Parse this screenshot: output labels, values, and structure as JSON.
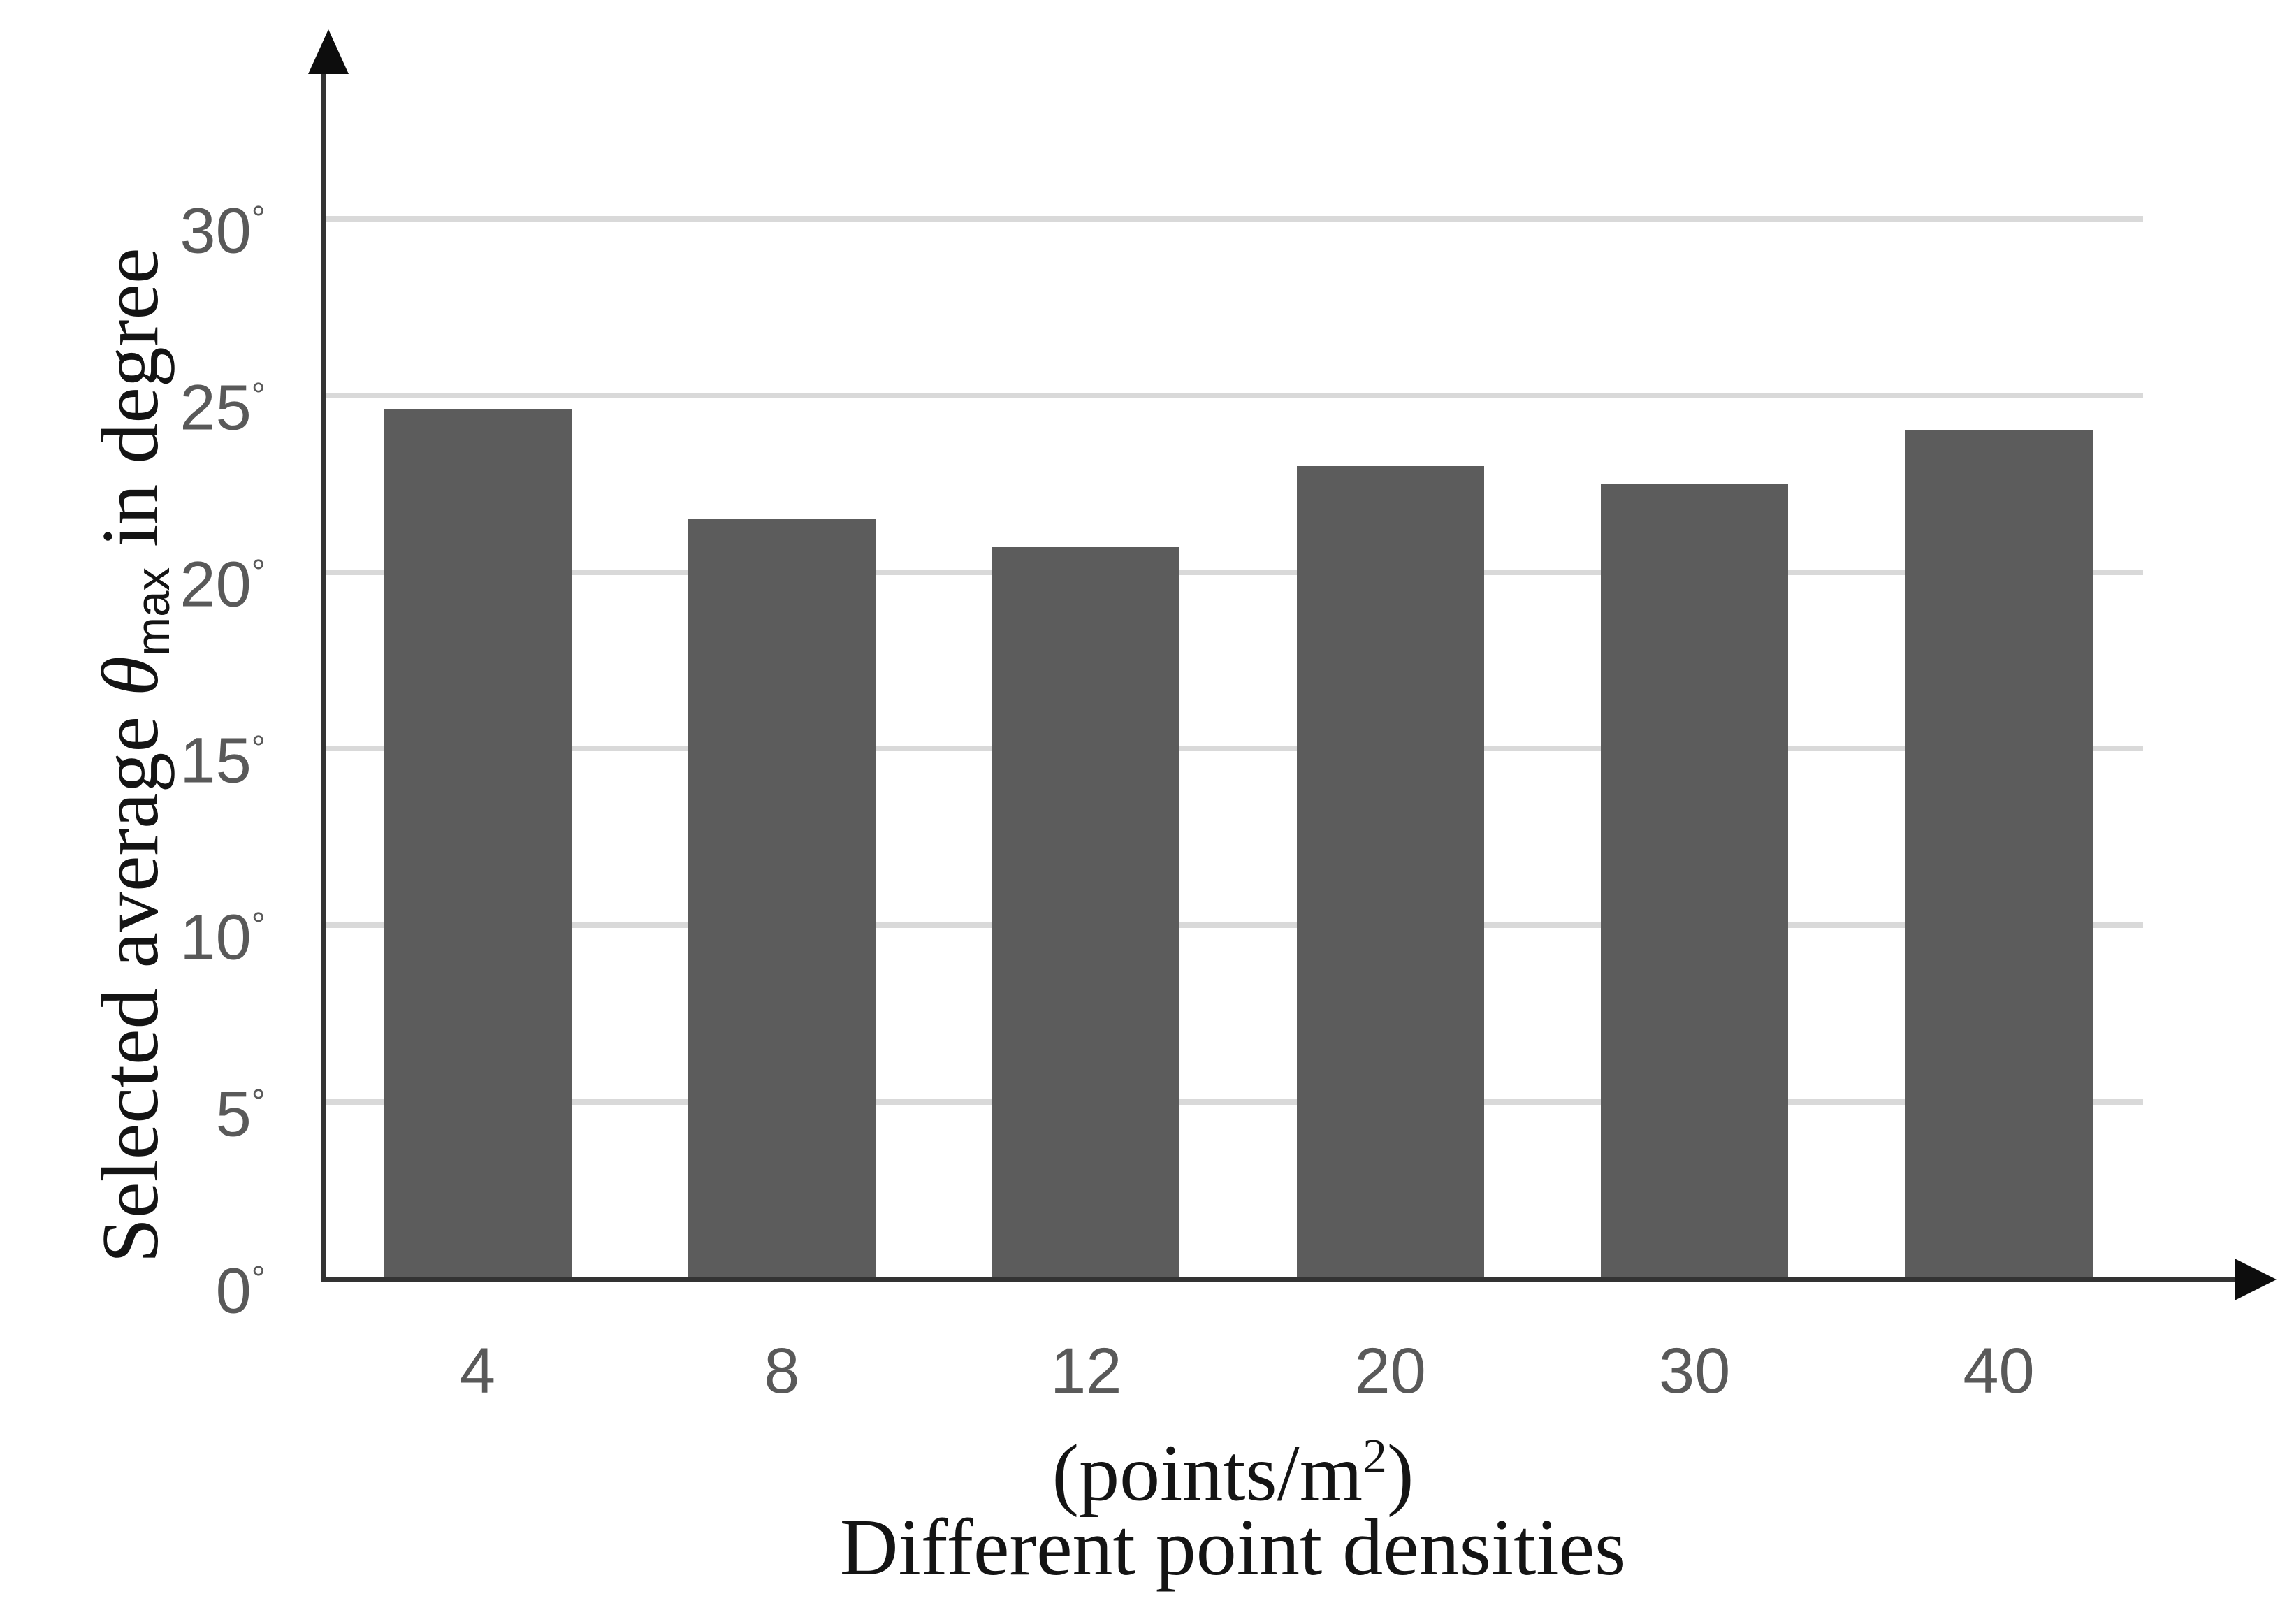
{
  "chart_data": {
    "type": "bar",
    "categories": [
      "4",
      "8",
      "12",
      "20",
      "30",
      "40"
    ],
    "values": [
      24.6,
      21.5,
      20.7,
      23.0,
      22.5,
      24.0
    ],
    "series_name": "Selected average theta-max per point density",
    "title": "",
    "xlabel_unit_prefix": "(points/m",
    "xlabel_unit_sup": "2",
    "xlabel_unit_suffix": ")",
    "xlabel_title": "Different point densities",
    "ylabel_prefix": "Selected average ",
    "ylabel_theta": "θ",
    "ylabel_theta_sub": "max",
    "ylabel_suffix": " in degree",
    "yticks": [
      0,
      5,
      10,
      15,
      20,
      25,
      30
    ],
    "ytick_degree_suffix": "°",
    "ylim": [
      0,
      33
    ],
    "grid": true,
    "legend": "none",
    "colors": {
      "bar_fill": "#5c5c5c",
      "gridline": "#d9d9d9",
      "axis_line": "#333333",
      "arrow": "#0d0d0d",
      "tick_label": "#595959",
      "serif_text": "#141414"
    }
  }
}
